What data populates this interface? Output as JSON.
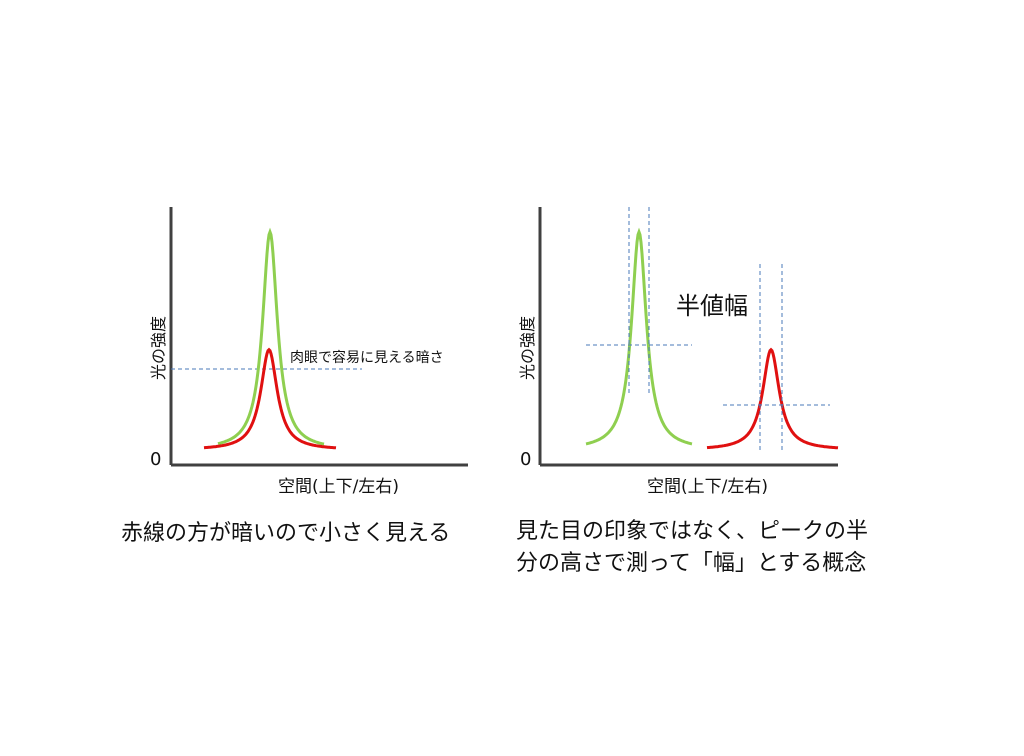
{
  "left_panel": {
    "y_axis_label": "光の強度",
    "x_axis_label": "空間(上下/左右)",
    "zero_label": "0",
    "threshold_label": "肉眼で容易に見える暗さ",
    "caption": "赤線の方が暗いので小さく見える",
    "curves": [
      {
        "id": "green",
        "color": "#8fcf50",
        "peak": 1.0,
        "width": 1.0
      },
      {
        "id": "red",
        "color": "#e01010",
        "peak": 0.46,
        "width": 1.0
      }
    ],
    "threshold_level": 0.38
  },
  "right_panel": {
    "y_axis_label": "光の強度",
    "x_axis_label": "空間(上下/左右)",
    "zero_label": "0",
    "fwhm_label": "半値幅",
    "caption_lines": [
      "見た目の印象ではなく、ピークの半",
      "分の高さで測って「幅」とする概念"
    ],
    "curves": [
      {
        "id": "green",
        "color": "#8fcf50",
        "peak": 1.0,
        "width": 1.0
      },
      {
        "id": "red",
        "color": "#e01010",
        "peak": 0.46,
        "width": 1.0
      }
    ]
  },
  "colors": {
    "axis": "#404040",
    "dashed_line": "#4a78b8"
  }
}
